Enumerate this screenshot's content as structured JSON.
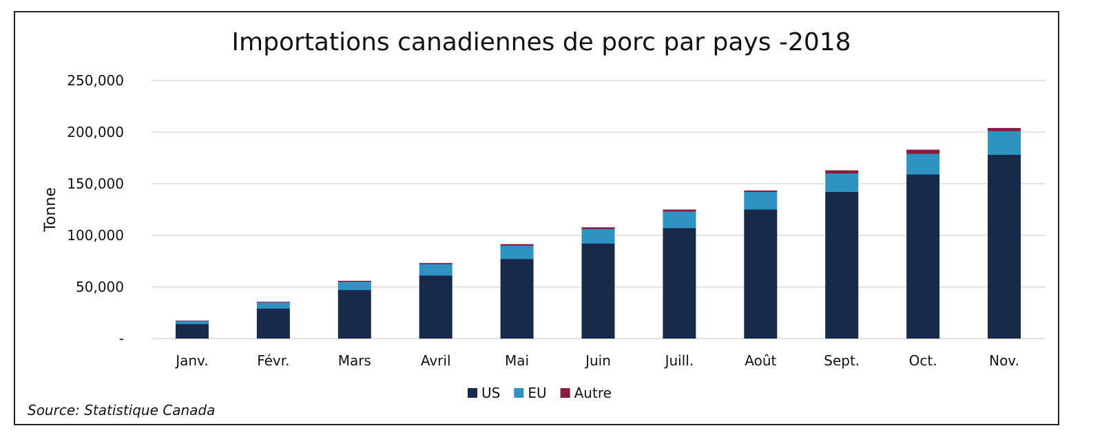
{
  "chart_data": {
    "type": "bar",
    "stacked": true,
    "title": "Importations canadiennes de porc par pays -2018",
    "ylabel": "Tonne",
    "xlabel": "",
    "ylim": [
      0,
      250000
    ],
    "yticks": [
      0,
      50000,
      100000,
      150000,
      200000,
      250000
    ],
    "ytick_labels": [
      "-",
      "50,000",
      "100,000",
      "150,000",
      "200,000",
      "250,000"
    ],
    "grid": true,
    "legend_position": "bottom",
    "categories": [
      "Janv.",
      "Févr.",
      "Mars",
      "Avril",
      "Mai",
      "Juin",
      "Juill.",
      "Août",
      "Sept.",
      "Oct.",
      "Nov."
    ],
    "series": [
      {
        "name": "US",
        "color": "#172a4a",
        "values": [
          14000,
          29000,
          47000,
          61000,
          77000,
          92000,
          107000,
          125000,
          142000,
          159000,
          178000
        ]
      },
      {
        "name": "EU",
        "color": "#2e93c3",
        "values": [
          3000,
          6000,
          8000,
          11000,
          13000,
          14000,
          16000,
          17000,
          18000,
          20000,
          23000
        ]
      },
      {
        "name": "Autre",
        "color": "#8b1a3f",
        "values": [
          500,
          700,
          1000,
          1200,
          1500,
          1800,
          2000,
          1500,
          3000,
          4000,
          3000
        ]
      }
    ],
    "source": "Source: Statistique Canada"
  }
}
